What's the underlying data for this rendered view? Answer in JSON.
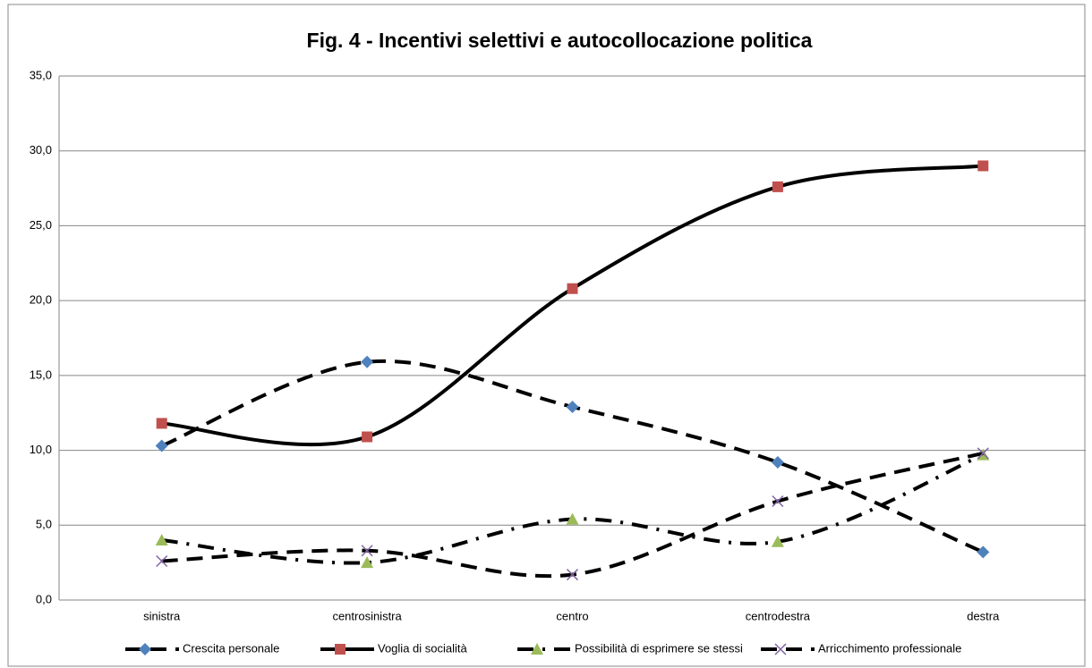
{
  "chart_data": {
    "type": "line",
    "title": "Fig. 4 - Incentivi selettivi e autocollocazione politica",
    "categories": [
      "sinistra",
      "centrosinistra",
      "centro",
      "centrodestra",
      "destra"
    ],
    "series": [
      {
        "name": "Crescita personale",
        "color": "#4f81bd",
        "marker": "diamond",
        "line_style": "dashed",
        "values": [
          10.3,
          15.9,
          12.9,
          9.2,
          3.2
        ]
      },
      {
        "name": "Voglia di socialità",
        "color": "#c0504d",
        "marker": "square",
        "line_style": "solid",
        "values": [
          11.8,
          10.9,
          20.8,
          27.6,
          29.0
        ]
      },
      {
        "name": "Possibilità di esprimere se stessi",
        "color": "#9bbb59",
        "marker": "triangle",
        "line_style": "dashdot",
        "values": [
          4.0,
          2.5,
          5.4,
          3.9,
          9.7
        ]
      },
      {
        "name": "Arricchimento professionale",
        "color": "#8064a2",
        "marker": "x",
        "line_style": "dashed",
        "values": [
          2.6,
          3.3,
          1.7,
          6.6,
          9.8
        ]
      }
    ],
    "ylim": [
      0,
      35
    ],
    "yticks": [
      {
        "value": 0,
        "label": "0,0"
      },
      {
        "value": 5,
        "label": "5,0"
      },
      {
        "value": 10,
        "label": "10,0"
      },
      {
        "value": 15,
        "label": "15,0"
      },
      {
        "value": 20,
        "label": "20,0"
      },
      {
        "value": 25,
        "label": "25,0"
      },
      {
        "value": 30,
        "label": "30,0"
      },
      {
        "value": 35,
        "label": "35,0"
      }
    ],
    "grid": true,
    "smooth": true,
    "legend": "bottom"
  }
}
